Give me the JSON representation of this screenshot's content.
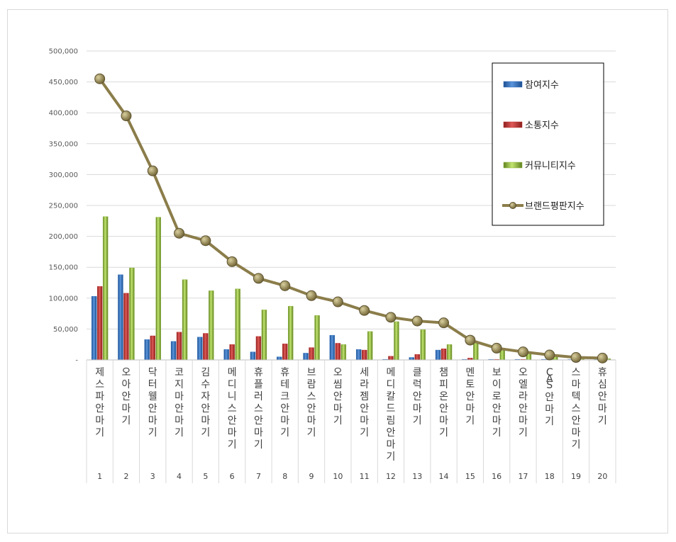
{
  "chart_data": {
    "type": "bar",
    "title": "",
    "xlabel": "",
    "ylabel": "",
    "ylim": [
      0,
      500000
    ],
    "yticks": [
      "-",
      "50,000",
      "100,000",
      "150,000",
      "200,000",
      "250,000",
      "300,000",
      "350,000",
      "400,000",
      "450,000",
      "500,000"
    ],
    "grid": true,
    "legend_position": "top-right",
    "categories": [
      {
        "num": "1",
        "name": "제스파안마기"
      },
      {
        "num": "2",
        "name": "오아안마기"
      },
      {
        "num": "3",
        "name": "닥터웰안마기"
      },
      {
        "num": "4",
        "name": "코지마안마기"
      },
      {
        "num": "5",
        "name": "김수자안마기"
      },
      {
        "num": "6",
        "name": "메디니스안마기"
      },
      {
        "num": "7",
        "name": "휴플러스안마기"
      },
      {
        "num": "8",
        "name": "휴테크안마기"
      },
      {
        "num": "9",
        "name": "브람스안마기"
      },
      {
        "num": "10",
        "name": "오씸안마기"
      },
      {
        "num": "11",
        "name": "세라젬안마기"
      },
      {
        "num": "12",
        "name": "메디칼드림안마기"
      },
      {
        "num": "13",
        "name": "클럭안마기"
      },
      {
        "num": "14",
        "name": "챔피온안마기"
      },
      {
        "num": "15",
        "name": "멘토안마기"
      },
      {
        "num": "16",
        "name": "보이로안마기"
      },
      {
        "num": "17",
        "name": "오엘라안마기"
      },
      {
        "num": "18",
        "name": "CAS안마기"
      },
      {
        "num": "19",
        "name": "스마텍스안마기"
      },
      {
        "num": "20",
        "name": "휴심안마기"
      }
    ],
    "series": [
      {
        "name": "참여지수",
        "type": "bar",
        "color": "#2e6fbf",
        "values": [
          103000,
          138000,
          33000,
          30000,
          37000,
          17000,
          13000,
          5000,
          11000,
          40000,
          17000,
          1000,
          4000,
          16000,
          1000,
          1000,
          1000,
          1000,
          500,
          500
        ]
      },
      {
        "name": "소통지수",
        "type": "bar",
        "color": "#c0302e",
        "values": [
          119000,
          108000,
          39000,
          45000,
          43000,
          25000,
          38000,
          26000,
          20000,
          27000,
          16000,
          6000,
          9000,
          18000,
          3000,
          1000,
          1000,
          1000,
          500,
          500
        ]
      },
      {
        "name": "커뮤니티지수",
        "type": "bar",
        "color": "#8db33a",
        "values": [
          232000,
          149000,
          231000,
          130000,
          112000,
          115000,
          81000,
          87000,
          72000,
          25000,
          46000,
          62000,
          49000,
          25000,
          28000,
          18000,
          11000,
          6000,
          3000,
          2000
        ]
      },
      {
        "name": "브랜드평판지수",
        "type": "line",
        "color": "#8b7d4a",
        "values": [
          455000,
          395000,
          306000,
          205000,
          193000,
          159000,
          132000,
          120000,
          104000,
          94000,
          80000,
          69000,
          63000,
          60000,
          32000,
          19000,
          13000,
          8000,
          4000,
          3000
        ]
      }
    ]
  }
}
